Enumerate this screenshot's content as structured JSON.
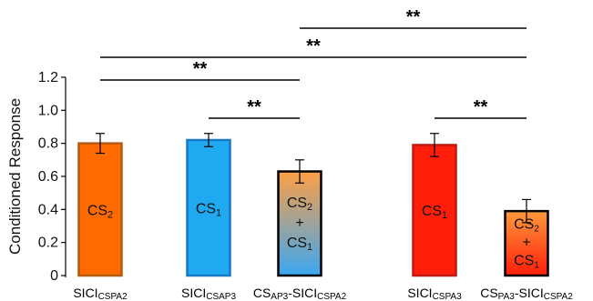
{
  "chart_data": {
    "type": "bar",
    "title": "",
    "xlabel": "",
    "ylabel": "Conditioned Response",
    "ylim": [
      0,
      1.2
    ],
    "yticks": [
      "0",
      "0.2",
      "0.4",
      "0.6",
      "0.8",
      "1.0",
      "1.2"
    ],
    "grid": false,
    "legend": "none",
    "bars": [
      {
        "category": "SICI",
        "category_sub": "CSPA2",
        "value": 0.8,
        "error": 0.06,
        "inside_label": [
          "CS",
          "2"
        ],
        "fill_top": "#ff6a00",
        "fill_bottom": "#ff6a00",
        "border": "#b35a10"
      },
      {
        "category": "SICI",
        "category_sub": "CSAP3",
        "value": 0.82,
        "error": 0.04,
        "inside_label": [
          "CS",
          "1"
        ],
        "fill_top": "#1ea9f0",
        "fill_bottom": "#1ea9f0",
        "border": "#1778c6"
      },
      {
        "category": "CS",
        "category_sub": "AP3",
        "category_suffix": "-SICI",
        "category_suffix_sub": "CSPA2",
        "value": 0.63,
        "error": 0.07,
        "inside_label": [
          "CS",
          "2",
          "+",
          "CS",
          "1"
        ],
        "fill_top": "#ff9f45",
        "fill_bottom": "#3ba7f2",
        "border": "#000000"
      },
      {
        "category": "SICI",
        "category_sub": "CSPA3",
        "value": 0.79,
        "error": 0.07,
        "inside_label": [
          "CS",
          "1"
        ],
        "fill_top": "#ff1e0a",
        "fill_bottom": "#ff1e0a",
        "border": "#c01a10"
      },
      {
        "category": "CS",
        "category_sub": "PA3",
        "category_suffix": "-SICI",
        "category_suffix_sub": "CSPA2",
        "value": 0.39,
        "error": 0.07,
        "inside_label": [
          "CS",
          "2",
          "+",
          "CS",
          "1"
        ],
        "fill_top": "#ff9a3c",
        "fill_bottom": "#ff1e0a",
        "border": "#000000"
      }
    ],
    "comparisons": [
      {
        "from": 0,
        "to": 2,
        "label": "**"
      },
      {
        "from": 1,
        "to": 2,
        "label": "**"
      },
      {
        "from": 0,
        "to": 4,
        "label": "**"
      },
      {
        "from": 2,
        "to": 4,
        "label": "**"
      },
      {
        "from": 3,
        "to": 4,
        "label": "**"
      }
    ]
  }
}
